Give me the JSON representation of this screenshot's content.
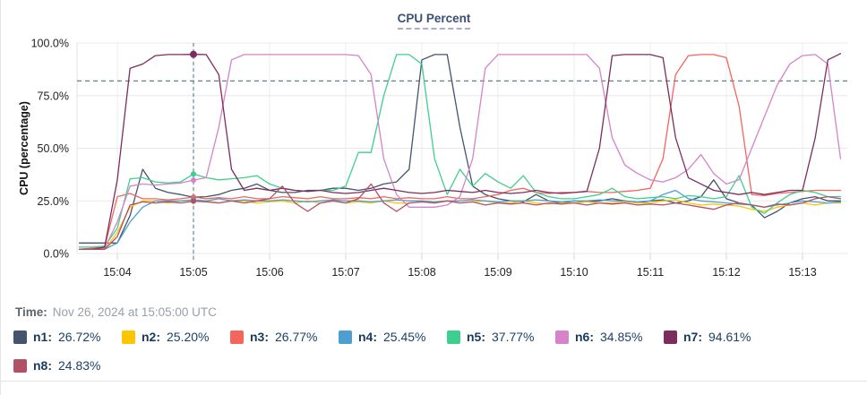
{
  "title": "CPU Percent",
  "time": {
    "label": "Time:",
    "value": "Nov 26, 2024 at 15:05:00 UTC"
  },
  "legend": [
    {
      "name": "n1:",
      "value": "26.72%",
      "color": "#44546c"
    },
    {
      "name": "n2:",
      "value": "25.20%",
      "color": "#fdc500"
    },
    {
      "name": "n3:",
      "value": "26.77%",
      "color": "#f4655c"
    },
    {
      "name": "n4:",
      "value": "25.45%",
      "color": "#4d9fd0"
    },
    {
      "name": "n5:",
      "value": "37.77%",
      "color": "#3ecf8e"
    },
    {
      "name": "n6:",
      "value": "34.85%",
      "color": "#d583ca"
    },
    {
      "name": "n7:",
      "value": "94.61%",
      "color": "#7c2d5d"
    },
    {
      "name": "n8:",
      "value": "24.83%",
      "color": "#b05167"
    }
  ],
  "chart_data": {
    "type": "line",
    "title": "CPU Percent",
    "ylabel": "CPU (percentage)",
    "ylim": [
      0,
      100
    ],
    "y_tick_labels": [
      "0.0%",
      "25.0%",
      "50.0%",
      "75.0%",
      "100.0%"
    ],
    "y_tick_values": [
      0,
      25,
      50,
      75,
      100
    ],
    "x_tick_labels": [
      "15:04",
      "15:05",
      "15:06",
      "15:07",
      "15:08",
      "15:09",
      "15:10",
      "15:11",
      "15:12",
      "15:13"
    ],
    "start_time": "15:03:30",
    "sample_interval_seconds": 10,
    "grid": true,
    "legend_position": "bottom",
    "threshold_pct": 82,
    "crosshair_time": "15:05:00",
    "crosshair_index": 9,
    "series": [
      {
        "name": "n1",
        "color": "#44546c",
        "value_at_cursor": 26.72,
        "values": [
          5,
          5,
          5,
          5,
          18,
          40,
          31,
          29,
          28,
          26.72,
          27,
          28,
          30,
          31,
          33,
          30,
          29,
          29,
          30,
          30,
          31,
          31,
          30,
          31,
          33,
          34,
          40,
          92,
          94.5,
          94.5,
          60,
          32,
          28,
          26,
          25,
          24.5,
          28,
          25,
          24,
          25,
          24.5,
          25,
          26,
          25,
          24,
          25,
          25.5,
          24,
          25,
          27,
          35,
          26,
          24,
          23,
          17,
          20,
          24,
          26,
          27,
          25,
          25
        ]
      },
      {
        "name": "n2",
        "color": "#fdc500",
        "value_at_cursor": 25.2,
        "values": [
          2,
          2,
          2,
          10,
          22,
          25,
          25,
          24,
          25,
          25.2,
          25,
          24,
          25,
          25,
          24,
          24.5,
          25,
          24,
          25,
          24,
          25,
          24,
          24.5,
          24,
          25,
          24,
          24,
          24.5,
          24,
          25,
          24,
          24.5,
          25,
          24,
          24,
          25,
          24,
          23.5,
          24,
          24,
          24.5,
          24,
          24,
          24.5,
          24,
          24,
          25,
          25.5,
          24,
          23,
          23.5,
          23,
          22.5,
          21,
          20,
          22,
          23,
          24,
          23,
          24,
          24
        ]
      },
      {
        "name": "n3",
        "color": "#f4655c",
        "value_at_cursor": 26.77,
        "values": [
          2,
          2.5,
          3,
          27,
          28.5,
          26,
          26,
          25.5,
          26,
          26.77,
          26,
          26.5,
          26,
          27,
          26,
          26,
          27,
          26.5,
          26,
          27,
          26,
          26,
          26.5,
          26,
          27,
          26,
          26.5,
          26,
          26,
          27,
          26,
          26,
          27,
          28,
          30,
          31,
          29,
          28.5,
          29,
          29,
          29.5,
          29,
          29,
          29.5,
          30,
          31,
          45,
          85,
          94,
          94.5,
          94.5,
          93,
          70,
          28,
          27.5,
          28.5,
          29,
          29.5,
          30,
          30,
          30
        ]
      },
      {
        "name": "n4",
        "color": "#4d9fd0",
        "value_at_cursor": 25.45,
        "values": [
          2,
          2,
          2,
          5,
          15,
          22,
          25,
          25,
          25,
          25.45,
          25,
          26,
          25,
          25.5,
          25,
          25,
          25.5,
          25,
          24.5,
          25,
          25.5,
          25,
          25,
          24.5,
          25,
          25.5,
          25,
          25,
          24.5,
          25,
          25,
          25.5,
          25,
          24.5,
          25,
          25,
          25.5,
          25,
          24.5,
          25,
          25,
          25.5,
          25,
          25,
          24.5,
          25,
          28,
          30,
          26,
          25,
          24.5,
          24,
          23.5,
          23,
          22,
          23,
          24,
          25,
          24.5,
          24,
          24.5
        ]
      },
      {
        "name": "n5",
        "color": "#3ecf8e",
        "value_at_cursor": 37.77,
        "values": [
          3,
          3,
          3.5,
          12,
          35.5,
          36,
          34,
          33.5,
          34,
          37.77,
          36,
          35,
          35.5,
          36,
          37,
          33,
          31,
          30,
          29.5,
          30,
          30,
          32,
          48,
          48,
          75,
          94.5,
          94.5,
          90,
          45,
          28,
          40,
          32,
          38,
          34,
          31,
          37,
          29,
          27,
          26,
          26,
          27,
          28,
          31,
          27,
          26,
          26.5,
          27,
          26,
          27.5,
          27,
          26,
          27,
          37,
          22,
          19,
          24,
          28,
          30,
          29,
          27,
          27
        ]
      },
      {
        "name": "n6",
        "color": "#d583ca",
        "value_at_cursor": 34.85,
        "values": [
          2,
          2,
          2.5,
          15,
          32,
          33,
          32.5,
          33,
          33.5,
          34.85,
          36,
          60,
          92,
          94.5,
          94.5,
          94.5,
          94.5,
          94.5,
          94.5,
          94.5,
          94.5,
          94.5,
          94,
          85,
          45,
          28,
          22,
          22,
          22,
          23,
          27,
          45,
          88,
          94.5,
          94.5,
          94.5,
          94.5,
          94.5,
          94.5,
          94.5,
          94.5,
          88,
          55,
          42,
          38,
          35,
          34,
          36,
          40,
          47,
          38,
          33,
          35,
          50,
          65,
          80,
          90,
          94,
          94.5,
          90,
          45
        ]
      },
      {
        "name": "n7",
        "color": "#7c2d5d",
        "value_at_cursor": 94.61,
        "values": [
          2,
          2,
          3,
          35,
          88,
          90,
          94,
          94.5,
          94.5,
          94.61,
          94.5,
          85,
          40,
          30,
          31,
          30,
          31,
          30,
          29.5,
          30,
          29,
          28.5,
          29,
          30,
          31,
          30,
          29,
          28.5,
          29,
          30,
          29.5,
          29,
          30,
          29,
          28.5,
          29,
          30,
          29,
          28.5,
          29,
          29.5,
          50,
          94,
          94.5,
          94.5,
          94.5,
          93,
          55,
          36,
          33,
          30,
          29,
          28,
          29,
          28,
          29,
          30,
          30,
          55,
          92,
          95
        ]
      },
      {
        "name": "n8",
        "color": "#b05167",
        "value_at_cursor": 24.83,
        "values": [
          2,
          2,
          2,
          8,
          23,
          24.5,
          24,
          24.5,
          24,
          24.83,
          24.5,
          24,
          25,
          24,
          25,
          26,
          32,
          24,
          20,
          24,
          25,
          24,
          26,
          33,
          24,
          20,
          24,
          24.5,
          24,
          25,
          24,
          24.5,
          23,
          24,
          23.5,
          24,
          23,
          24,
          23.5,
          24,
          23,
          24,
          23.5,
          24,
          23,
          23.5,
          23,
          24,
          23,
          22,
          21,
          23,
          24,
          23,
          22,
          23.5,
          23,
          24,
          26,
          27,
          26
        ]
      }
    ]
  }
}
